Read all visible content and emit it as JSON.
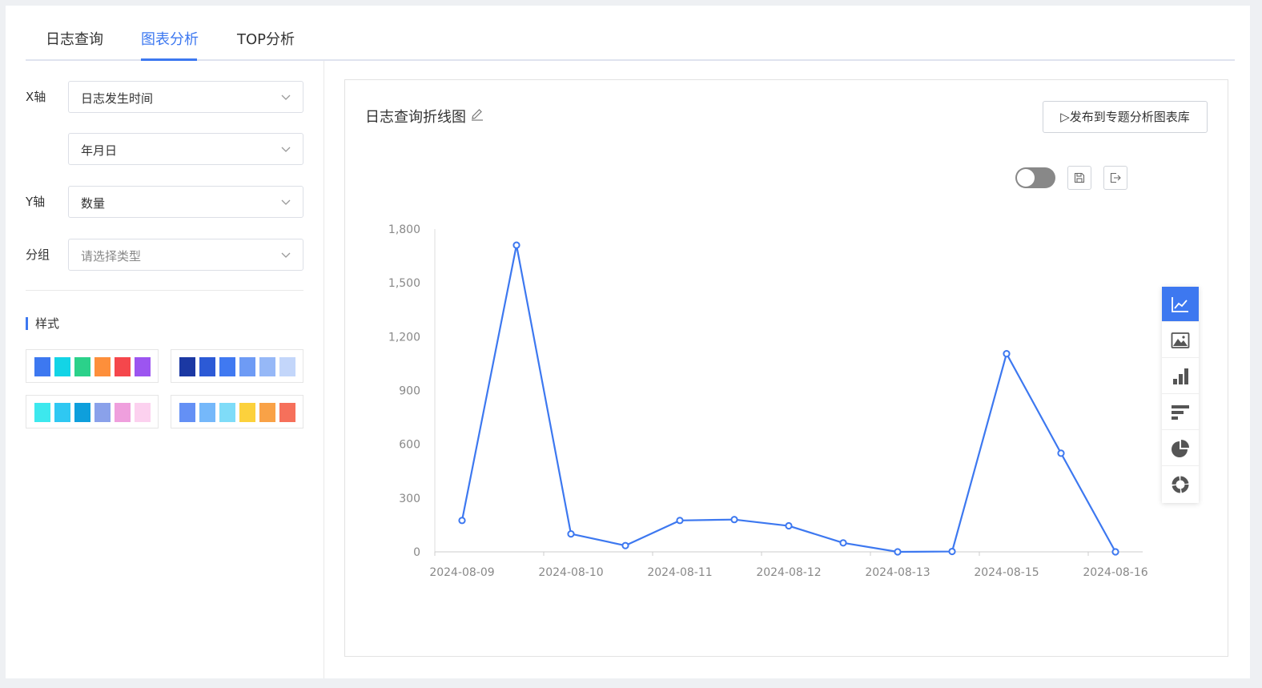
{
  "tabs": [
    {
      "label": "日志查询",
      "active": false
    },
    {
      "label": "图表分析",
      "active": true
    },
    {
      "label": "TOP分析",
      "active": false
    }
  ],
  "form": {
    "x_axis_label": "X轴",
    "x_field_value": "日志发生时间",
    "x_granularity_value": "年月日",
    "y_axis_label": "Y轴",
    "y_field_value": "数量",
    "group_label": "分组",
    "group_placeholder": "请选择类型"
  },
  "style": {
    "title": "样式",
    "palettes": [
      [
        "#3d78f0",
        "#13d4e6",
        "#2bd18a",
        "#fd8f3b",
        "#f5474c",
        "#9c55f0"
      ],
      [
        "#1b38a3",
        "#2c5ad6",
        "#4079f1",
        "#6e9bf5",
        "#96b8f7",
        "#c3d6fa"
      ],
      [
        "#3de8ee",
        "#2fc8f2",
        "#0e9fdc",
        "#8aa1ea",
        "#ef9fdd",
        "#fcd1ef"
      ],
      [
        "#6490f5",
        "#75b8fa",
        "#7fdcf8",
        "#fcd13c",
        "#f9a247",
        "#f6705b"
      ]
    ]
  },
  "chart_panel": {
    "title": "日志查询折线图",
    "publish_label": "▷发布到专题分析图表库",
    "toggle_on": false
  },
  "chart_data": {
    "type": "line",
    "x": [
      "2024-08-09",
      "",
      "2024-08-10",
      "",
      "2024-08-11",
      "",
      "2024-08-12",
      "",
      "2024-08-13",
      "",
      "2024-08-15",
      "",
      "2024-08-16"
    ],
    "x_tick_labels": [
      "2024-08-09",
      "2024-08-10",
      "2024-08-11",
      "2024-08-12",
      "2024-08-13",
      "2024-08-15",
      "2024-08-16"
    ],
    "values": [
      175,
      1710,
      100,
      35,
      175,
      180,
      145,
      50,
      0,
      2,
      1105,
      550,
      0
    ],
    "y_ticks": [
      "0",
      "300",
      "600",
      "900",
      "1,200",
      "1,500",
      "1,800"
    ],
    "ylim": [
      0,
      1800
    ],
    "color": "#3d78f0",
    "grid": false
  },
  "chart_types": [
    {
      "name": "line-chart-icon",
      "active": true
    },
    {
      "name": "area-chart-icon",
      "active": false
    },
    {
      "name": "bar-chart-icon",
      "active": false
    },
    {
      "name": "horizontal-bar-icon",
      "active": false
    },
    {
      "name": "pie-chart-icon",
      "active": false
    },
    {
      "name": "donut-chart-icon",
      "active": false
    }
  ]
}
